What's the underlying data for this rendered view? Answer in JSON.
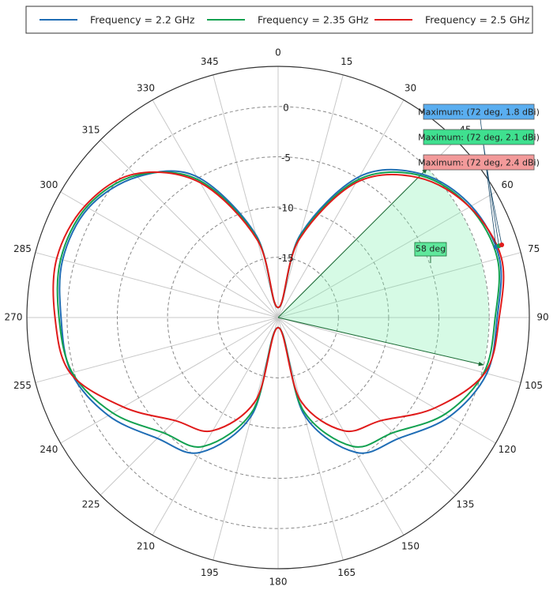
{
  "chart_data": {
    "type": "polar",
    "theta": [
      0,
      15,
      30,
      45,
      60,
      75,
      90,
      105,
      120,
      135,
      150,
      165,
      180,
      195,
      210,
      225,
      240,
      255,
      270,
      285,
      300,
      315,
      330,
      345
    ],
    "series": [
      {
        "name": "Frequency = 2.2 GHz",
        "color": "#1f6db5",
        "values": [
          -20,
          -12.5,
          -4.8,
          -0.8,
          1.2,
          1.8,
          0.8,
          0.5,
          -1.3,
          -4.0,
          -5.5,
          -11,
          -20,
          -11,
          -5.5,
          -4.0,
          -1.5,
          0.3,
          0.6,
          1.2,
          0.8,
          -1.2,
          -4.8,
          -12.5
        ]
      },
      {
        "name": "Frequency = 2.35 GHz",
        "color": "#12a150",
        "values": [
          -20,
          -12.8,
          -5.2,
          -1.0,
          1.0,
          1.6,
          0.6,
          0.2,
          -1.8,
          -4.8,
          -6.2,
          -11.5,
          -20,
          -11.5,
          -6.2,
          -4.8,
          -2.0,
          0.2,
          0.8,
          1.4,
          1.0,
          -1.0,
          -5.2,
          -12.8
        ]
      },
      {
        "name": "Frequency = 2.5 GHz",
        "color": "#e01b1b",
        "values": [
          -20,
          -13,
          -5.5,
          -1.3,
          1.0,
          2.0,
          1.0,
          0.3,
          -3.0,
          -6.5,
          -8.0,
          -12.5,
          -20,
          -12.5,
          -8.0,
          -6.5,
          -3.2,
          0.4,
          1.2,
          1.8,
          1.2,
          -0.8,
          -5.5,
          -13
        ]
      }
    ],
    "rlim": [
      -21,
      4
    ],
    "rticks": [
      -15,
      -10,
      -5,
      0
    ],
    "thetaticks": [
      0,
      15,
      30,
      45,
      60,
      75,
      90,
      105,
      120,
      135,
      150,
      165,
      180,
      195,
      210,
      225,
      240,
      255,
      270,
      285,
      300,
      315,
      330,
      345
    ],
    "grid": true,
    "legend_position": "top",
    "maxima": [
      {
        "angle": 72,
        "value": 1.8,
        "label": "Maximum: (72 deg, 1.8 dBi)",
        "color": "#5aaef0"
      },
      {
        "angle": 72,
        "value": 2.1,
        "label": "Maximum: (72 deg, 2.1 dBi)",
        "color": "#3fe08f"
      },
      {
        "angle": 72,
        "value": 2.4,
        "label": "Maximum: (72 deg, 2.4 dBi)",
        "color": "#f39a9a"
      }
    ],
    "beamwidth": {
      "start": 45,
      "end": 103,
      "label": "58 deg"
    }
  }
}
